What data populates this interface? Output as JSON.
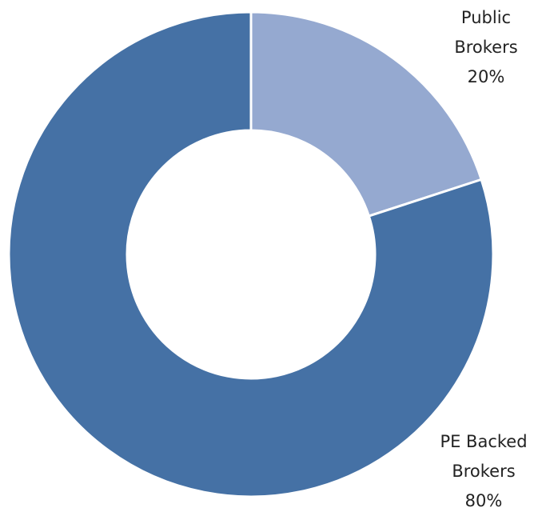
{
  "chart_data": {
    "type": "donut",
    "categories": [
      "Public Brokers",
      "PE Backed Brokers"
    ],
    "values": [
      20,
      80
    ],
    "value_labels": [
      "20%",
      "80%"
    ],
    "colors": [
      "#95a9d0",
      "#4571a5"
    ]
  }
}
